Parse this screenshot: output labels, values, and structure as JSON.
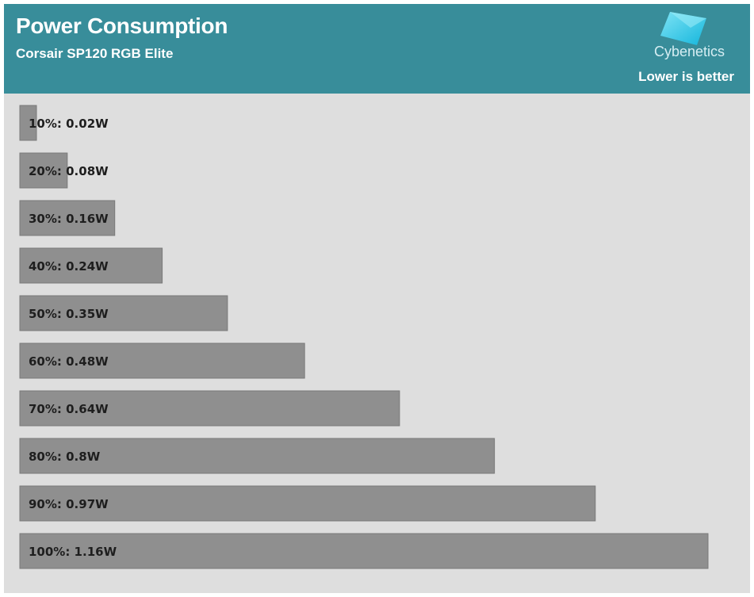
{
  "header": {
    "title": "Power Consumption",
    "subtitle": "Corsair SP120 RGB Elite",
    "brand": "Cybenetics",
    "note": "Lower is better"
  },
  "colors": {
    "header_bg": "#388d9a",
    "plot_bg": "#dedede",
    "bar_fill": "#8f8f8f",
    "bar_stroke": "#7a7a7a",
    "logo": "#29c6e6"
  },
  "chart_data": {
    "type": "bar",
    "orientation": "horizontal",
    "title": "Power Consumption",
    "subtitle": "Corsair SP120 RGB Elite",
    "categories": [
      "10%",
      "20%",
      "30%",
      "40%",
      "50%",
      "60%",
      "70%",
      "80%",
      "90%",
      "100%"
    ],
    "values": [
      0.02,
      0.08,
      0.16,
      0.24,
      0.35,
      0.48,
      0.64,
      0.8,
      0.97,
      1.16
    ],
    "labels": [
      "10%: 0.02W",
      "20%: 0.08W",
      "30%: 0.16W",
      "40%: 0.24W",
      "50%: 0.35W",
      "60%: 0.48W",
      "70%: 0.64W",
      "80%: 0.8W",
      "90%: 0.97W",
      "100%: 1.16W"
    ],
    "unit": "W",
    "xlim": [
      0,
      1.16
    ],
    "grid": false,
    "legend": "none"
  }
}
